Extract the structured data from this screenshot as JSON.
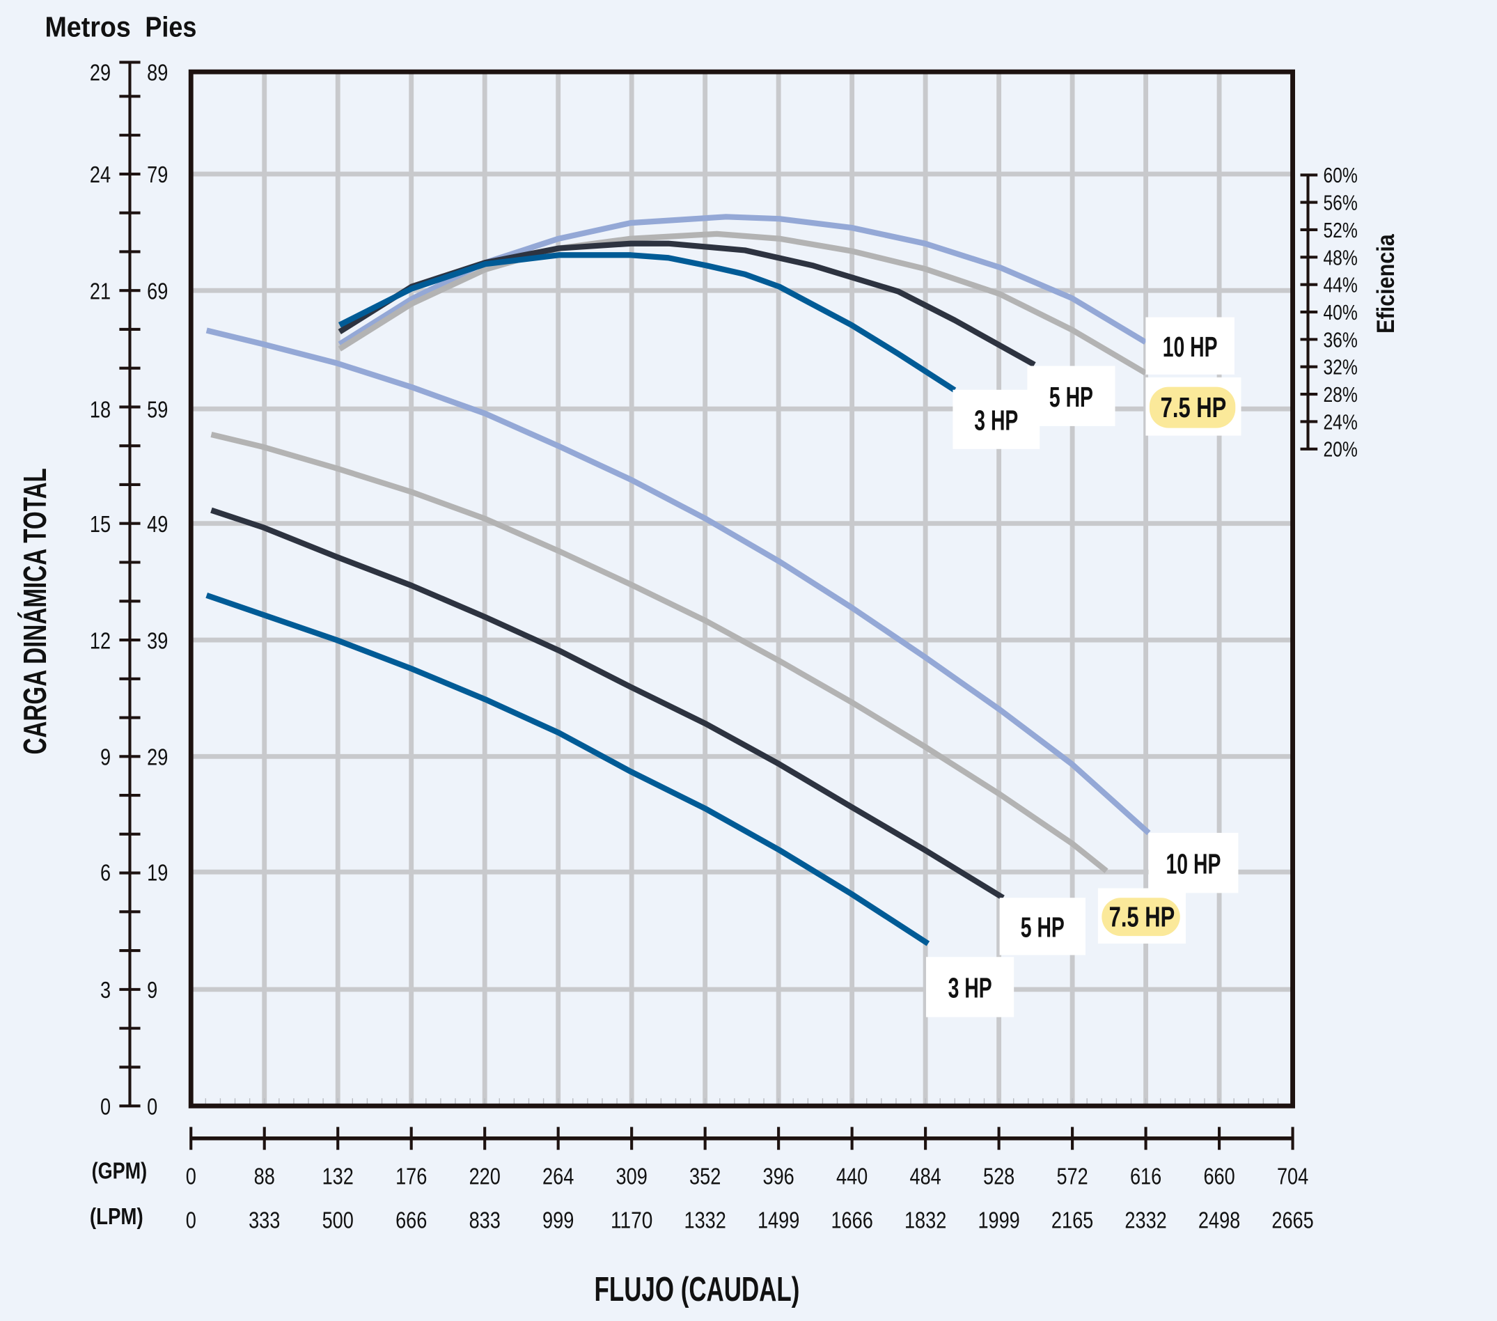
{
  "chart_data": {
    "type": "line",
    "title": "",
    "xlabel": "FLUJO (CAUDAL)",
    "ylabel": "CARGA DINÁMICA TOTAL",
    "y2label": "Eficiencia",
    "y_units": {
      "left": "Metros",
      "right": "Pies"
    },
    "x_units": {
      "primary": "(GPM)",
      "secondary": "(LPM)"
    },
    "xlim": [
      0,
      704
    ],
    "ylim_meters": [
      0,
      26.6
    ],
    "y2lim": [
      20,
      60
    ],
    "grid": true,
    "x_ticks_gpm": [
      "0",
      "88",
      "132",
      "176",
      "220",
      "264",
      "309",
      "352",
      "396",
      "440",
      "484",
      "528",
      "572",
      "616",
      "660",
      "704"
    ],
    "x_ticks_lpm": [
      "0",
      "333",
      "500",
      "666",
      "833",
      "999",
      "1170",
      "1332",
      "1499",
      "1666",
      "1832",
      "1999",
      "2165",
      "2332",
      "2498",
      "2665"
    ],
    "y_ticks_metros": [
      "29",
      "24",
      "21",
      "18",
      "15",
      "12",
      "9",
      "6",
      "3",
      "0"
    ],
    "y_ticks_pies": [
      "89",
      "79",
      "69",
      "59",
      "49",
      "39",
      "29",
      "19",
      "9",
      "0"
    ],
    "y2_ticks": [
      "60%",
      "56%",
      "52%",
      "48%",
      "44%",
      "40%",
      "36%",
      "32%",
      "28%",
      "24%",
      "20%"
    ],
    "head_series": [
      {
        "name": "10 HP",
        "color": "#94a8d6",
        "x": [
          10,
          46,
          93,
          141,
          188,
          235,
          281,
          329,
          376,
          422,
          469,
          517,
          563,
          612
        ],
        "y": [
          19.97,
          19.62,
          19.13,
          18.51,
          17.83,
          16.99,
          16.13,
          15.12,
          14.02,
          12.84,
          11.56,
          10.2,
          8.8,
          7.03
        ]
      },
      {
        "name": "7.5 HP",
        "color": "#b3b3b3",
        "highlight": "#fbe99a",
        "x": [
          13,
          46,
          93,
          141,
          188,
          235,
          281,
          329,
          376,
          422,
          469,
          517,
          563,
          585
        ],
        "y": [
          17.29,
          16.97,
          16.42,
          15.81,
          15.12,
          14.29,
          13.43,
          12.49,
          11.46,
          10.4,
          9.25,
          8.02,
          6.76,
          6.05
        ]
      },
      {
        "name": "5 HP",
        "color": "#2d3340",
        "x": [
          13,
          46,
          93,
          141,
          188,
          235,
          281,
          329,
          376,
          422,
          469,
          519
        ],
        "y": [
          15.34,
          14.9,
          14.14,
          13.4,
          12.59,
          11.73,
          10.79,
          9.84,
          8.8,
          7.7,
          6.59,
          5.36
        ]
      },
      {
        "name": "3 HP",
        "color": "#005b96",
        "x": [
          10,
          93,
          141,
          188,
          235,
          281,
          329,
          376,
          422,
          471
        ],
        "y": [
          13.15,
          12.0,
          11.26,
          10.47,
          9.61,
          8.61,
          7.65,
          6.59,
          5.46,
          4.18
        ]
      }
    ],
    "efficiency_series": [
      {
        "name": "10 HP",
        "color": "#94a8d6",
        "x": [
          95,
          141,
          188,
          235,
          281,
          342,
          376,
          422,
          469,
          517,
          563,
          610
        ],
        "y": [
          35.3,
          41.9,
          47.2,
          50.7,
          53.0,
          53.9,
          53.6,
          52.3,
          50.0,
          46.5,
          42.0,
          35.6
        ]
      },
      {
        "name": "7.5 HP",
        "color": "#b3b3b3",
        "highlight": "#fbe99a",
        "x": [
          95,
          141,
          188,
          235,
          281,
          336,
          376,
          422,
          469,
          517,
          563,
          610
        ],
        "y": [
          34.6,
          41.2,
          46.2,
          49.3,
          50.7,
          51.4,
          50.7,
          48.9,
          46.3,
          42.6,
          37.4,
          31.1
        ]
      },
      {
        "name": "5 HP",
        "color": "#2d3340",
        "x": [
          95,
          141,
          188,
          235,
          281,
          305,
          354,
          397,
          452,
          488,
          539
        ],
        "y": [
          37.1,
          43.7,
          47.2,
          49.3,
          50.0,
          50.0,
          49.0,
          46.8,
          43.0,
          38.8,
          32.3
        ]
      },
      {
        "name": "3 HP",
        "color": "#005b96",
        "x": [
          95,
          141,
          188,
          235,
          281,
          305,
          329,
          354,
          376,
          422,
          452,
          488
        ],
        "y": [
          38.1,
          43.4,
          47.0,
          48.3,
          48.3,
          47.9,
          46.8,
          45.5,
          43.7,
          38.1,
          33.9,
          28.6
        ]
      }
    ]
  },
  "colors": {
    "background": "#eef3fa",
    "grid": "#c8c9cc",
    "frame": "#1d1210"
  }
}
